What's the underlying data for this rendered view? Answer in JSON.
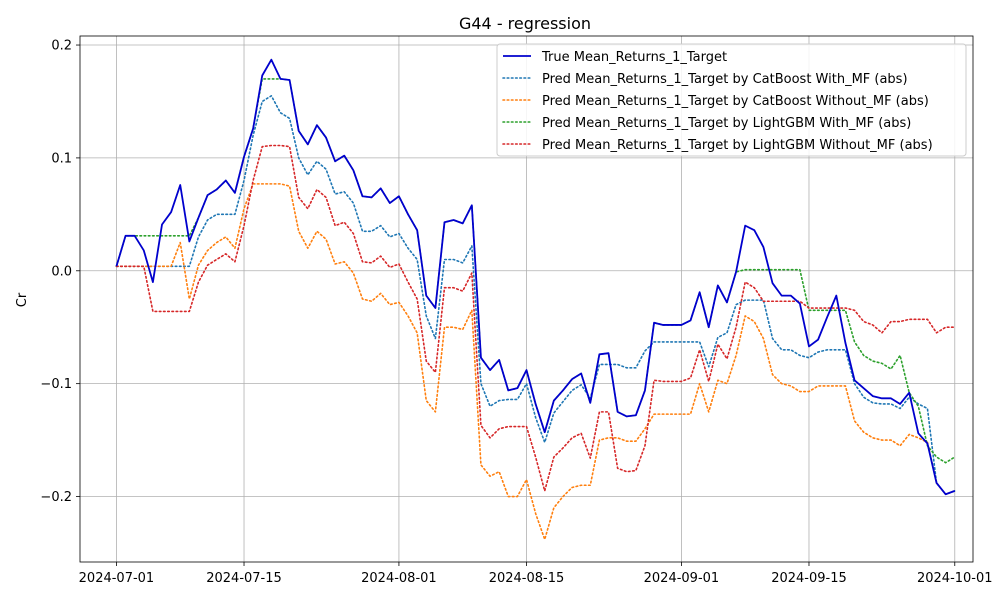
{
  "chart_data": {
    "type": "line",
    "title": "G44 - regression",
    "xlabel": "",
    "ylabel": "Cr",
    "x_start": "2024-07-01",
    "x_end": "2024-09-29",
    "xlim": [
      "2024-06-27",
      "2024-10-03"
    ],
    "ylim": [
      -0.258,
      0.208
    ],
    "x_ticks": [
      "2024-07-01",
      "2024-07-15",
      "2024-08-01",
      "2024-08-15",
      "2024-09-01",
      "2024-09-15",
      "2024-10-01"
    ],
    "y_ticks": [
      0.2,
      0.1,
      0.0,
      -0.1,
      -0.2
    ],
    "y_tick_labels": [
      "0.2",
      "0.1",
      "0.0",
      "−0.1",
      "−0.2"
    ],
    "grid": true,
    "legend_position": "top-right",
    "series": [
      {
        "name": "True Mean_Returns_1_Target",
        "color": "#0000cd",
        "style": "solid",
        "values": [
          0.004,
          0.031,
          0.031,
          0.018,
          -0.01,
          0.041,
          0.052,
          0.076,
          0.026,
          0.047,
          0.067,
          0.072,
          0.08,
          0.069,
          0.101,
          0.126,
          0.173,
          0.187,
          0.17,
          0.169,
          0.124,
          0.112,
          0.129,
          0.118,
          0.097,
          0.102,
          0.089,
          0.066,
          0.065,
          0.073,
          0.06,
          0.066,
          0.05,
          0.036,
          -0.022,
          -0.033,
          0.043,
          0.045,
          0.042,
          0.058,
          -0.077,
          -0.088,
          -0.079,
          -0.106,
          -0.104,
          -0.088,
          -0.118,
          -0.143,
          -0.115,
          -0.106,
          -0.096,
          -0.091,
          -0.117,
          -0.074,
          -0.073,
          -0.125,
          -0.129,
          -0.128,
          -0.106,
          -0.046,
          -0.048,
          -0.048,
          -0.048,
          -0.044,
          -0.019,
          -0.05,
          -0.013,
          -0.028,
          -0.001,
          0.04,
          0.036,
          0.021,
          -0.011,
          -0.022,
          -0.022,
          -0.029,
          -0.067,
          -0.061,
          -0.041,
          -0.022,
          -0.064,
          -0.097,
          -0.104,
          -0.111,
          -0.113,
          -0.113,
          -0.118,
          -0.108,
          -0.144,
          -0.153,
          -0.188,
          -0.198,
          -0.195
        ]
      },
      {
        "name": "Pred Mean_Returns_1_Target by CatBoost With_MF (abs)",
        "color": "#1f77b4",
        "style": "dotted",
        "values": [
          0.004,
          0.004,
          0.004,
          0.004,
          0.004,
          0.004,
          0.004,
          0.004,
          0.004,
          0.03,
          0.045,
          0.05,
          0.05,
          0.05,
          0.08,
          0.12,
          0.15,
          0.155,
          0.14,
          0.135,
          0.1,
          0.085,
          0.097,
          0.09,
          0.068,
          0.07,
          0.06,
          0.035,
          0.035,
          0.04,
          0.03,
          0.033,
          0.02,
          0.01,
          -0.04,
          -0.06,
          0.01,
          0.01,
          0.007,
          0.022,
          -0.1,
          -0.12,
          -0.115,
          -0.114,
          -0.114,
          -0.1,
          -0.13,
          -0.152,
          -0.126,
          -0.116,
          -0.106,
          -0.101,
          -0.113,
          -0.083,
          -0.083,
          -0.083,
          -0.086,
          -0.086,
          -0.071,
          -0.063,
          -0.063,
          -0.063,
          -0.063,
          -0.063,
          -0.063,
          -0.085,
          -0.059,
          -0.055,
          -0.03,
          -0.026,
          -0.026,
          -0.026,
          -0.06,
          -0.07,
          -0.07,
          -0.075,
          -0.077,
          -0.072,
          -0.07,
          -0.07,
          -0.07,
          -0.1,
          -0.112,
          -0.117,
          -0.118,
          -0.118,
          -0.122,
          -0.112,
          -0.118,
          -0.122,
          -0.188,
          -0.198,
          -0.195
        ]
      },
      {
        "name": "Pred Mean_Returns_1_Target by CatBoost Without_MF (abs)",
        "color": "#ff7f0e",
        "style": "dotted",
        "values": [
          0.004,
          0.004,
          0.004,
          0.004,
          0.004,
          0.004,
          0.004,
          0.025,
          -0.025,
          0.005,
          0.018,
          0.025,
          0.03,
          0.02,
          0.055,
          0.077,
          0.077,
          0.077,
          0.077,
          0.075,
          0.035,
          0.02,
          0.035,
          0.028,
          0.006,
          0.008,
          -0.002,
          -0.025,
          -0.027,
          -0.02,
          -0.03,
          -0.028,
          -0.04,
          -0.055,
          -0.115,
          -0.125,
          -0.05,
          -0.05,
          -0.052,
          -0.035,
          -0.172,
          -0.182,
          -0.178,
          -0.2,
          -0.2,
          -0.185,
          -0.215,
          -0.238,
          -0.21,
          -0.2,
          -0.192,
          -0.19,
          -0.19,
          -0.15,
          -0.148,
          -0.148,
          -0.151,
          -0.151,
          -0.14,
          -0.127,
          -0.127,
          -0.127,
          -0.127,
          -0.127,
          -0.1,
          -0.125,
          -0.097,
          -0.1,
          -0.075,
          -0.04,
          -0.045,
          -0.06,
          -0.092,
          -0.1,
          -0.102,
          -0.107,
          -0.107,
          -0.102,
          -0.102,
          -0.102,
          -0.102,
          -0.133,
          -0.143,
          -0.148,
          -0.15,
          -0.15,
          -0.155,
          -0.145,
          -0.148,
          -0.152,
          -0.188,
          -0.198,
          -0.195
        ]
      },
      {
        "name": "Pred Mean_Returns_1_Target by LightGBM With_MF (abs)",
        "color": "#2ca02c",
        "style": "dotted",
        "values": [
          0.004,
          0.031,
          0.031,
          0.031,
          0.031,
          0.031,
          0.031,
          0.031,
          0.031,
          0.047,
          0.067,
          0.072,
          0.08,
          0.069,
          0.101,
          0.126,
          0.17,
          0.17,
          0.17,
          0.169,
          0.124,
          0.112,
          0.129,
          0.118,
          0.097,
          0.102,
          0.089,
          0.066,
          0.065,
          0.073,
          0.06,
          0.066,
          0.05,
          0.036,
          -0.022,
          -0.033,
          0.043,
          0.045,
          0.042,
          0.058,
          -0.077,
          -0.088,
          -0.079,
          -0.106,
          -0.104,
          -0.088,
          -0.118,
          -0.143,
          -0.115,
          -0.106,
          -0.096,
          -0.091,
          -0.117,
          -0.074,
          -0.073,
          -0.125,
          -0.129,
          -0.128,
          -0.106,
          -0.046,
          -0.048,
          -0.048,
          -0.048,
          -0.044,
          -0.019,
          -0.05,
          -0.013,
          -0.028,
          -0.001,
          0.001,
          0.001,
          0.001,
          0.001,
          0.001,
          0.001,
          0.001,
          -0.035,
          -0.035,
          -0.035,
          -0.035,
          -0.035,
          -0.063,
          -0.075,
          -0.08,
          -0.082,
          -0.087,
          -0.075,
          -0.108,
          -0.12,
          -0.155,
          -0.165,
          -0.17,
          -0.165
        ]
      },
      {
        "name": "Pred Mean_Returns_1_Target by LightGBM Without_MF (abs)",
        "color": "#d62728",
        "style": "dotted",
        "values": [
          0.004,
          0.004,
          0.004,
          0.004,
          -0.036,
          -0.036,
          -0.036,
          -0.036,
          -0.036,
          -0.01,
          0.005,
          0.01,
          0.015,
          0.008,
          0.04,
          0.08,
          0.11,
          0.111,
          0.111,
          0.11,
          0.065,
          0.055,
          0.072,
          0.065,
          0.04,
          0.043,
          0.033,
          0.008,
          0.007,
          0.013,
          0.003,
          0.006,
          -0.01,
          -0.025,
          -0.08,
          -0.09,
          -0.015,
          -0.015,
          -0.018,
          -0.002,
          -0.137,
          -0.148,
          -0.14,
          -0.138,
          -0.138,
          -0.138,
          -0.165,
          -0.195,
          -0.165,
          -0.157,
          -0.148,
          -0.144,
          -0.166,
          -0.125,
          -0.125,
          -0.175,
          -0.178,
          -0.177,
          -0.155,
          -0.097,
          -0.098,
          -0.098,
          -0.098,
          -0.095,
          -0.07,
          -0.098,
          -0.065,
          -0.078,
          -0.05,
          -0.01,
          -0.015,
          -0.027,
          -0.027,
          -0.027,
          -0.027,
          -0.027,
          -0.033,
          -0.033,
          -0.033,
          -0.033,
          -0.033,
          -0.035,
          -0.045,
          -0.048,
          -0.055,
          -0.045,
          -0.045,
          -0.043,
          -0.043,
          -0.043,
          -0.055,
          -0.05,
          -0.05
        ]
      }
    ]
  }
}
